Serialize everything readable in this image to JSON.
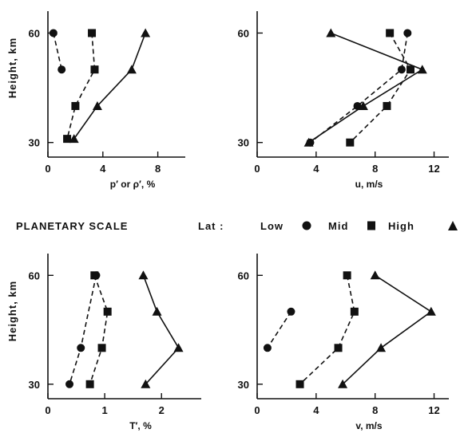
{
  "banner": {
    "title": "PLANETARY SCALE",
    "lat_label": "Lat :",
    "legend": [
      {
        "label": "Low",
        "marker": "circle",
        "icon": "circle-marker-icon"
      },
      {
        "label": "Mid",
        "marker": "square",
        "icon": "square-marker-icon"
      },
      {
        "label": "High",
        "marker": "triangle",
        "icon": "triangle-marker-icon"
      }
    ]
  },
  "chart_data": [
    {
      "type": "line",
      "id": "pressure-density",
      "xlabel": "p′ or ρ′, %",
      "ylabel": "Height, km",
      "xlim": [
        0,
        10
      ],
      "ylim": [
        26,
        66
      ],
      "xticks": [
        "0",
        "4",
        "8"
      ],
      "xtick_values": [
        0,
        4,
        8
      ],
      "yticks": [
        "30",
        "60"
      ],
      "ytick_values": [
        30,
        60
      ],
      "series": [
        {
          "name": "Low",
          "marker": "circle",
          "dash": true,
          "points": [
            [
              0.4,
              60
            ],
            [
              1.0,
              50
            ]
          ]
        },
        {
          "name": "Mid",
          "marker": "square",
          "dash": true,
          "points": [
            [
              3.2,
              60
            ],
            [
              3.4,
              50
            ],
            [
              2.0,
              40
            ],
            [
              1.4,
              31
            ]
          ]
        },
        {
          "name": "High",
          "marker": "triangle",
          "dash": false,
          "points": [
            [
              7.1,
              60
            ],
            [
              6.1,
              50
            ],
            [
              3.6,
              40
            ],
            [
              1.9,
              31
            ]
          ]
        }
      ]
    },
    {
      "type": "line",
      "id": "zonal-wind",
      "xlabel": "u, m/s",
      "ylabel": "",
      "xlim": [
        0,
        13
      ],
      "ylim": [
        26,
        66
      ],
      "xticks": [
        "0",
        "4",
        "8",
        "12"
      ],
      "xtick_values": [
        0,
        4,
        8,
        12
      ],
      "yticks": [
        "30",
        "60"
      ],
      "ytick_values": [
        30,
        60
      ],
      "series": [
        {
          "name": "Low",
          "marker": "circle",
          "dash": true,
          "points": [
            [
              10.2,
              60
            ],
            [
              9.8,
              50
            ],
            [
              6.8,
              40
            ],
            [
              3.6,
              30
            ]
          ]
        },
        {
          "name": "Mid",
          "marker": "square",
          "dash": true,
          "points": [
            [
              9.0,
              60
            ],
            [
              10.4,
              50
            ],
            [
              8.8,
              40
            ],
            [
              6.3,
              30
            ]
          ]
        },
        {
          "name": "High",
          "marker": "triangle",
          "dash": false,
          "points": [
            [
              5.0,
              60
            ],
            [
              11.2,
              50
            ],
            [
              7.2,
              40
            ],
            [
              3.5,
              30
            ]
          ]
        }
      ]
    },
    {
      "type": "line",
      "id": "temperature",
      "xlabel": "T′, %",
      "ylabel": "Height, km",
      "xlim": [
        0,
        2.7
      ],
      "ylim": [
        26,
        66
      ],
      "xticks": [
        "0",
        "1",
        "2"
      ],
      "xtick_values": [
        0,
        1,
        2
      ],
      "yticks": [
        "30",
        "60"
      ],
      "ytick_values": [
        30,
        60
      ],
      "series": [
        {
          "name": "Low",
          "marker": "circle",
          "dash": true,
          "points": [
            [
              0.85,
              60
            ],
            [
              0.58,
              40
            ],
            [
              0.38,
              30
            ]
          ]
        },
        {
          "name": "Mid",
          "marker": "square",
          "dash": true,
          "points": [
            [
              0.82,
              60
            ],
            [
              1.05,
              50
            ],
            [
              0.95,
              40
            ],
            [
              0.74,
              30
            ]
          ]
        },
        {
          "name": "High",
          "marker": "triangle",
          "dash": false,
          "points": [
            [
              1.68,
              60
            ],
            [
              1.92,
              50
            ],
            [
              2.3,
              40
            ],
            [
              1.72,
              30
            ]
          ]
        }
      ]
    },
    {
      "type": "line",
      "id": "meridional-wind",
      "xlabel": "v, m/s",
      "ylabel": "",
      "xlim": [
        0,
        13
      ],
      "ylim": [
        26,
        66
      ],
      "xticks": [
        "0",
        "4",
        "8",
        "12"
      ],
      "xtick_values": [
        0,
        4,
        8,
        12
      ],
      "yticks": [
        "30",
        "60"
      ],
      "ytick_values": [
        30,
        60
      ],
      "series": [
        {
          "name": "Low",
          "marker": "circle",
          "dash": true,
          "points": [
            [
              2.3,
              50
            ],
            [
              0.7,
              40
            ]
          ]
        },
        {
          "name": "Mid",
          "marker": "square",
          "dash": true,
          "points": [
            [
              6.1,
              60
            ],
            [
              6.6,
              50
            ],
            [
              5.5,
              40
            ],
            [
              2.9,
              30
            ]
          ]
        },
        {
          "name": "High",
          "marker": "triangle",
          "dash": false,
          "points": [
            [
              8.0,
              60
            ],
            [
              11.8,
              50
            ],
            [
              8.4,
              40
            ],
            [
              5.8,
              30
            ]
          ]
        }
      ]
    }
  ]
}
